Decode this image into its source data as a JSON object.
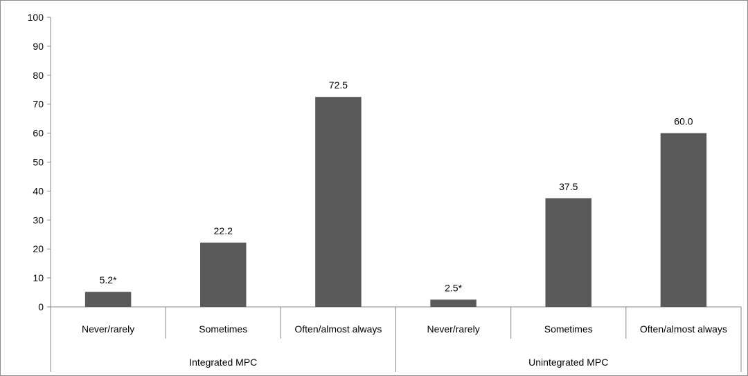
{
  "chart_data": {
    "type": "bar",
    "ylim": [
      0,
      100
    ],
    "yticks": [
      0,
      10,
      20,
      30,
      40,
      50,
      60,
      70,
      80,
      90,
      100
    ],
    "grid": false,
    "bar_color": "#595959",
    "groups": [
      {
        "name": "Integrated MPC",
        "categories": [
          "Never/rarely",
          "Sometimes",
          "Often/almost always"
        ],
        "values": [
          5.2,
          22.2,
          72.5
        ],
        "labels": [
          "5.2*",
          "22.2",
          "72.5"
        ]
      },
      {
        "name": "Unintegrated MPC",
        "categories": [
          "Never/rarely",
          "Sometimes",
          "Often/almost always"
        ],
        "values": [
          2.5,
          37.5,
          60.0
        ],
        "labels": [
          "2.5*",
          "37.5",
          "60.0"
        ]
      }
    ]
  }
}
